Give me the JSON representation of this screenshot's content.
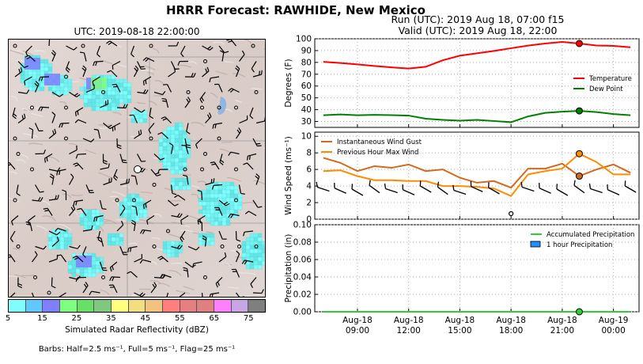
{
  "suptitle": "HRRR Forecast: RAWHIDE, New Mexico",
  "map": {
    "title": "UTC: 2019-08-18 22:00:00",
    "colorbar": {
      "colors": [
        "#7fffff",
        "#5fc8ff",
        "#7f7fff",
        "#7fff7f",
        "#66e066",
        "#7fc87f",
        "#ffff7f",
        "#f2de7f",
        "#f2c37f",
        "#ff7f7f",
        "#e67f7f",
        "#e07f7f",
        "#ff7fff",
        "#c8a6e6",
        "#7f7f7f"
      ],
      "ticks": [
        "5",
        "15",
        "25",
        "35",
        "45",
        "55",
        "65",
        "75"
      ],
      "label": "Simulated Radar Reflectivity (dBZ)"
    },
    "barbs_note": "Barbs: Half=2.5 ms⁻¹, Full=5 ms⁻¹, Flag=25 ms⁻¹"
  },
  "run": {
    "line1": "Run (UTC): 2019 Aug 18, 07:00 f15",
    "line2": "Valid (UTC): 2019 Aug 18, 22:00"
  },
  "chart_data": [
    {
      "type": "line",
      "ylabel": "Degrees (F)",
      "ylim": [
        25,
        100
      ],
      "yticks": [
        30,
        40,
        50,
        60,
        70,
        80,
        90,
        100
      ],
      "grid": true,
      "legend": "right",
      "x": [
        "07:00",
        "08:00",
        "09:00",
        "10:00",
        "11:00",
        "12:00",
        "13:00",
        "14:00",
        "15:00",
        "16:00",
        "17:00",
        "18:00",
        "19:00",
        "20:00",
        "21:00",
        "22:00",
        "23:00",
        "00:00",
        "01:00"
      ],
      "series": [
        {
          "name": "Temperature",
          "color": "#ff0000",
          "values": [
            80.5,
            79.5,
            78.3,
            77.0,
            75.8,
            74.8,
            76.3,
            81.8,
            85.7,
            87.7,
            89.7,
            92.0,
            94.2,
            96.0,
            97.3,
            96.0,
            94.3,
            94.0,
            92.8
          ]
        },
        {
          "name": "Dew Point",
          "color": "#008000",
          "values": [
            35.3,
            36.0,
            35.3,
            35.6,
            35.4,
            35.0,
            32.4,
            31.4,
            30.7,
            31.4,
            30.4,
            29.4,
            34.3,
            37.3,
            38.3,
            39.0,
            38.0,
            36.3,
            35.3
          ]
        }
      ],
      "markers": [
        {
          "x": "22:00",
          "y": 96.0,
          "color": "#ff0000"
        },
        {
          "x": "22:00",
          "y": 39.0,
          "color": "#008000"
        }
      ]
    },
    {
      "type": "line",
      "ylabel": "Wind Speed (ms⁻¹)",
      "ylim": [
        0,
        10.5
      ],
      "yticks": [
        0,
        2,
        4,
        6,
        8,
        10
      ],
      "grid": true,
      "legend": "top-left",
      "x": [
        "07:00",
        "08:00",
        "09:00",
        "10:00",
        "11:00",
        "12:00",
        "13:00",
        "14:00",
        "15:00",
        "16:00",
        "17:00",
        "18:00",
        "19:00",
        "20:00",
        "21:00",
        "22:00",
        "23:00",
        "00:00",
        "01:00"
      ],
      "series": [
        {
          "name": "Instantaneous Wind Gust",
          "color": "#d2691e",
          "values": [
            7.4,
            6.8,
            5.8,
            6.4,
            6.2,
            6.6,
            5.8,
            6.0,
            5.0,
            4.4,
            4.6,
            3.8,
            6.1,
            6.1,
            6.7,
            5.2,
            6.0,
            6.6,
            5.6
          ]
        },
        {
          "name": "Previous Hour Max Wind",
          "color": "#ff8c00",
          "values": [
            5.8,
            5.9,
            5.2,
            4.7,
            4.7,
            4.6,
            4.6,
            4.0,
            4.0,
            3.9,
            3.7,
            2.8,
            5.4,
            5.8,
            6.1,
            7.9,
            6.9,
            5.4,
            5.4
          ]
        }
      ],
      "markers": [
        {
          "x": "22:00",
          "y": 7.9,
          "color": "#ff8c00"
        },
        {
          "x": "22:00",
          "y": 5.2,
          "color": "#d2691e"
        }
      ],
      "calm_marker_x": "18:00"
    },
    {
      "type": "line",
      "ylabel": "Precipitation (in)",
      "ylim": [
        0,
        0.1
      ],
      "yticks": [
        "0.00",
        "0.02",
        "0.04",
        "0.06",
        "0.08",
        "0.10"
      ],
      "grid": true,
      "legend": "top-right",
      "series": [
        {
          "name": "Accumulated Precipitation",
          "color": "#32cd32",
          "values": [
            0,
            0,
            0,
            0,
            0,
            0,
            0,
            0,
            0,
            0,
            0,
            0,
            0,
            0,
            0,
            0,
            0,
            0,
            0
          ]
        },
        {
          "name": "1 hour Precipitation",
          "color": "#1e90ff",
          "type": "bar",
          "values": [
            0,
            0,
            0,
            0,
            0,
            0,
            0,
            0,
            0,
            0,
            0,
            0,
            0,
            0,
            0,
            0,
            0,
            0,
            0
          ]
        }
      ],
      "markers": [
        {
          "x": "22:00",
          "y": 0.0,
          "color": "#32cd32"
        }
      ],
      "xtick_labels": [
        [
          "Aug-18",
          "09:00"
        ],
        [
          "Aug-18",
          "12:00"
        ],
        [
          "Aug-18",
          "15:00"
        ],
        [
          "Aug-18",
          "18:00"
        ],
        [
          "Aug-18",
          "21:00"
        ],
        [
          "Aug-19",
          "00:00"
        ]
      ]
    }
  ]
}
